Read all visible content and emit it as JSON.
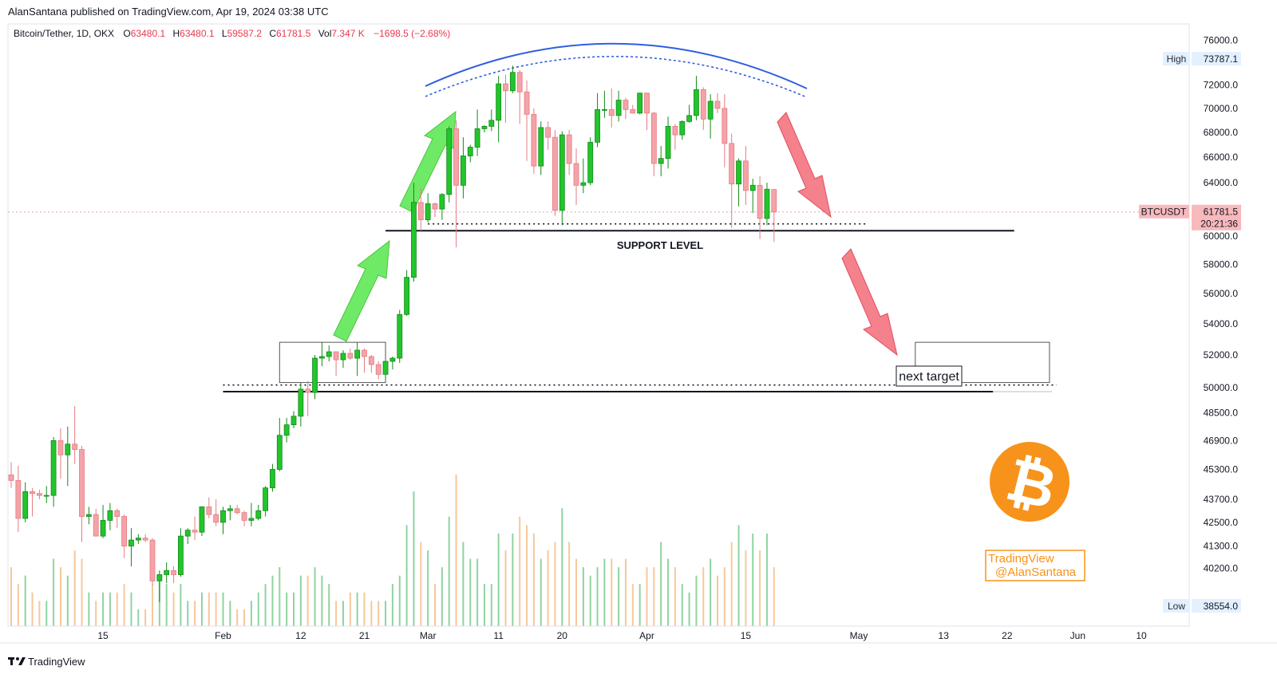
{
  "header": {
    "published": "AlanSantana published on TradingView.com, Apr 19, 2024 03:38 UTC",
    "symbol": "Bitcoin/Tether, 1D, OKX",
    "o_label": "O",
    "o_value": "63480.1",
    "h_label": "H",
    "h_value": "63480.1",
    "l_label": "L",
    "l_value": "59587.2",
    "c_label": "C",
    "c_value": "61781.5",
    "vol_label": "Vol",
    "vol_value": "7.347 K",
    "change": "−1698.5 (−2.68%)"
  },
  "footer": {
    "logo_text": "TradingView"
  },
  "badges": {
    "high_label": "High",
    "high_value": "73787.1",
    "low_label": "Low",
    "low_value": "38554.0",
    "symbol_label": "BTCUSDT",
    "last_price": "61781.5",
    "countdown": "20:21:36"
  },
  "annotations": {
    "support_label": "SUPPORT LEVEL",
    "target_label": "next target",
    "watermark_line1": "TradingView",
    "watermark_line2": "@AlanSantana"
  },
  "colors": {
    "up": "#22c52b",
    "down": "#f4a3a8",
    "vol_up": "#8fd3a0",
    "vol_down": "#f7c79a",
    "arc": "#2f5fe0",
    "arrow_green": "#5fe855",
    "arrow_red": "#f26b78",
    "btc": "#f7931a",
    "price_line": "#f6a0a0"
  },
  "chart_data": {
    "type": "candlestick",
    "y_scale": "log",
    "ylim": [
      37500,
      77500
    ],
    "y_ticks": [
      76000,
      72000,
      70000,
      68000,
      66000,
      64000,
      60000,
      58000,
      56000,
      54000,
      52000,
      50000,
      48500,
      46900,
      45300,
      43700,
      42500,
      41300,
      40200
    ],
    "x_range": [
      "2024-01-02",
      "2024-06-15"
    ],
    "x_ticks": [
      {
        "date": "2024-01-15",
        "label": "15"
      },
      {
        "date": "2024-02-01",
        "label": "Feb"
      },
      {
        "date": "2024-02-12",
        "label": "12"
      },
      {
        "date": "2024-02-21",
        "label": "21"
      },
      {
        "date": "2024-03-01",
        "label": "Mar"
      },
      {
        "date": "2024-03-11",
        "label": "11"
      },
      {
        "date": "2024-03-20",
        "label": "20"
      },
      {
        "date": "2024-04-01",
        "label": "Apr"
      },
      {
        "date": "2024-04-15",
        "label": "15"
      },
      {
        "date": "2024-05-01",
        "label": "May"
      },
      {
        "date": "2024-05-13",
        "label": "13"
      },
      {
        "date": "2024-05-22",
        "label": "22"
      },
      {
        "date": "2024-06-01",
        "label": "Jun"
      },
      {
        "date": "2024-06-10",
        "label": "10"
      }
    ],
    "support_lines": [
      {
        "price": 60400,
        "from": "2024-02-24",
        "to": "2024-05-23",
        "style": "solid"
      },
      {
        "price": 60900,
        "from": "2024-02-30",
        "to": "2024-05-02",
        "style": "dotted"
      },
      {
        "price": 49750,
        "from": "2024-02-01",
        "to": "2024-05-20",
        "style": "solid"
      },
      {
        "price": 50150,
        "from": "2024-02-01",
        "to": "2024-05-29",
        "style": "dotted"
      }
    ],
    "consolidation_box": {
      "from": "2024-02-09",
      "to": "2024-02-24",
      "high": 52800,
      "low": 50300
    },
    "target_box": {
      "from": "2024-05-09",
      "to": "2024-05-28",
      "high": 52800,
      "low": 50300
    },
    "candles": [
      {
        "date": "2024-01-02",
        "o": 45000,
        "h": 45700,
        "l": 44300,
        "c": 44700
      },
      {
        "date": "2024-01-03",
        "o": 44700,
        "h": 45500,
        "l": 42000,
        "c": 42700
      },
      {
        "date": "2024-01-04",
        "o": 42700,
        "h": 44600,
        "l": 42500,
        "c": 44100
      },
      {
        "date": "2024-01-05",
        "o": 44100,
        "h": 44300,
        "l": 42800,
        "c": 44000
      },
      {
        "date": "2024-01-06",
        "o": 44000,
        "h": 44200,
        "l": 43700,
        "c": 43900
      },
      {
        "date": "2024-01-07",
        "o": 43900,
        "h": 44400,
        "l": 43500,
        "c": 43900
      },
      {
        "date": "2024-01-08",
        "o": 43900,
        "h": 47100,
        "l": 43300,
        "c": 46900
      },
      {
        "date": "2024-01-09",
        "o": 46900,
        "h": 47600,
        "l": 44800,
        "c": 46100
      },
      {
        "date": "2024-01-10",
        "o": 46100,
        "h": 47700,
        "l": 44400,
        "c": 46700
      },
      {
        "date": "2024-01-11",
        "o": 46700,
        "h": 48900,
        "l": 45600,
        "c": 46400
      },
      {
        "date": "2024-01-12",
        "o": 46400,
        "h": 46600,
        "l": 41500,
        "c": 42800
      },
      {
        "date": "2024-01-13",
        "o": 42800,
        "h": 43300,
        "l": 42400,
        "c": 42900
      },
      {
        "date": "2024-01-14",
        "o": 42900,
        "h": 43200,
        "l": 41800,
        "c": 41800
      },
      {
        "date": "2024-01-15",
        "o": 41800,
        "h": 43400,
        "l": 41700,
        "c": 42600
      },
      {
        "date": "2024-01-16",
        "o": 42600,
        "h": 43500,
        "l": 42100,
        "c": 43100
      },
      {
        "date": "2024-01-17",
        "o": 43100,
        "h": 43200,
        "l": 42200,
        "c": 42800
      },
      {
        "date": "2024-01-18",
        "o": 42800,
        "h": 42900,
        "l": 40700,
        "c": 41300
      },
      {
        "date": "2024-01-19",
        "o": 41300,
        "h": 42200,
        "l": 40300,
        "c": 41600
      },
      {
        "date": "2024-01-20",
        "o": 41600,
        "h": 41900,
        "l": 41400,
        "c": 41700
      },
      {
        "date": "2024-01-21",
        "o": 41700,
        "h": 41900,
        "l": 41500,
        "c": 41600
      },
      {
        "date": "2024-01-22",
        "o": 41600,
        "h": 41700,
        "l": 39400,
        "c": 39600
      },
      {
        "date": "2024-01-23",
        "o": 39600,
        "h": 40100,
        "l": 38600,
        "c": 39900
      },
      {
        "date": "2024-01-24",
        "o": 39900,
        "h": 40500,
        "l": 39500,
        "c": 40100
      },
      {
        "date": "2024-01-25",
        "o": 40100,
        "h": 40300,
        "l": 39500,
        "c": 39900
      },
      {
        "date": "2024-01-26",
        "o": 39900,
        "h": 42200,
        "l": 39800,
        "c": 41800
      },
      {
        "date": "2024-01-27",
        "o": 41800,
        "h": 42200,
        "l": 41400,
        "c": 42100
      },
      {
        "date": "2024-01-28",
        "o": 42100,
        "h": 42800,
        "l": 41600,
        "c": 42000
      },
      {
        "date": "2024-01-29",
        "o": 42000,
        "h": 43300,
        "l": 41800,
        "c": 43300
      },
      {
        "date": "2024-01-30",
        "o": 43300,
        "h": 43800,
        "l": 42700,
        "c": 42900
      },
      {
        "date": "2024-01-31",
        "o": 42900,
        "h": 43700,
        "l": 42300,
        "c": 42500
      },
      {
        "date": "2024-02-01",
        "o": 42500,
        "h": 43300,
        "l": 41900,
        "c": 43100
      },
      {
        "date": "2024-02-02",
        "o": 43100,
        "h": 43400,
        "l": 42600,
        "c": 43200
      },
      {
        "date": "2024-02-03",
        "o": 43200,
        "h": 43400,
        "l": 42900,
        "c": 43000
      },
      {
        "date": "2024-02-04",
        "o": 43000,
        "h": 43100,
        "l": 42300,
        "c": 42600
      },
      {
        "date": "2024-02-05",
        "o": 42600,
        "h": 43500,
        "l": 42300,
        "c": 42700
      },
      {
        "date": "2024-02-06",
        "o": 42700,
        "h": 43400,
        "l": 42600,
        "c": 43100
      },
      {
        "date": "2024-02-07",
        "o": 43100,
        "h": 44400,
        "l": 42800,
        "c": 44300
      },
      {
        "date": "2024-02-08",
        "o": 44300,
        "h": 45600,
        "l": 44100,
        "c": 45300
      },
      {
        "date": "2024-02-09",
        "o": 45300,
        "h": 48200,
        "l": 45200,
        "c": 47200
      },
      {
        "date": "2024-02-10",
        "o": 47200,
        "h": 48200,
        "l": 46800,
        "c": 47800
      },
      {
        "date": "2024-02-11",
        "o": 47800,
        "h": 48600,
        "l": 47600,
        "c": 48300
      },
      {
        "date": "2024-02-12",
        "o": 48300,
        "h": 50300,
        "l": 47700,
        "c": 49900
      },
      {
        "date": "2024-02-13",
        "o": 49900,
        "h": 50400,
        "l": 48300,
        "c": 49700
      },
      {
        "date": "2024-02-14",
        "o": 49700,
        "h": 52000,
        "l": 49300,
        "c": 51800
      },
      {
        "date": "2024-02-15",
        "o": 51800,
        "h": 52800,
        "l": 51300,
        "c": 51900
      },
      {
        "date": "2024-02-16",
        "o": 51900,
        "h": 52600,
        "l": 51600,
        "c": 52200
      },
      {
        "date": "2024-02-17",
        "o": 52200,
        "h": 52200,
        "l": 50700,
        "c": 51700
      },
      {
        "date": "2024-02-18",
        "o": 51700,
        "h": 52300,
        "l": 51200,
        "c": 52100
      },
      {
        "date": "2024-02-19",
        "o": 52100,
        "h": 52400,
        "l": 51700,
        "c": 51800
      },
      {
        "date": "2024-02-20",
        "o": 51800,
        "h": 52800,
        "l": 50700,
        "c": 52300
      },
      {
        "date": "2024-02-21",
        "o": 52300,
        "h": 52400,
        "l": 50900,
        "c": 51900
      },
      {
        "date": "2024-02-22",
        "o": 51900,
        "h": 52000,
        "l": 50900,
        "c": 51400
      },
      {
        "date": "2024-02-23",
        "o": 51400,
        "h": 51600,
        "l": 50500,
        "c": 50800
      },
      {
        "date": "2024-02-24",
        "o": 50800,
        "h": 51600,
        "l": 50600,
        "c": 51600
      },
      {
        "date": "2024-02-25",
        "o": 51600,
        "h": 51900,
        "l": 51100,
        "c": 51800
      },
      {
        "date": "2024-02-26",
        "o": 51800,
        "h": 54900,
        "l": 51500,
        "c": 54600
      },
      {
        "date": "2024-02-27",
        "o": 54600,
        "h": 57600,
        "l": 54500,
        "c": 57100
      },
      {
        "date": "2024-02-28",
        "o": 57100,
        "h": 64000,
        "l": 56800,
        "c": 62500
      },
      {
        "date": "2024-02-29",
        "o": 62500,
        "h": 63600,
        "l": 60400,
        "c": 61200
      },
      {
        "date": "2024-03-01",
        "o": 61200,
        "h": 63200,
        "l": 61000,
        "c": 62400
      },
      {
        "date": "2024-03-02",
        "o": 62400,
        "h": 62500,
        "l": 61400,
        "c": 62000
      },
      {
        "date": "2024-03-03",
        "o": 62000,
        "h": 63200,
        "l": 61200,
        "c": 63100
      },
      {
        "date": "2024-03-04",
        "o": 63100,
        "h": 68500,
        "l": 62500,
        "c": 68300
      },
      {
        "date": "2024-03-05",
        "o": 68300,
        "h": 69000,
        "l": 59200,
        "c": 63800
      },
      {
        "date": "2024-03-06",
        "o": 63800,
        "h": 67600,
        "l": 62800,
        "c": 66100
      },
      {
        "date": "2024-03-07",
        "o": 66100,
        "h": 67000,
        "l": 65600,
        "c": 66800
      },
      {
        "date": "2024-03-08",
        "o": 66800,
        "h": 69900,
        "l": 66100,
        "c": 68300
      },
      {
        "date": "2024-03-09",
        "o": 68300,
        "h": 68600,
        "l": 68000,
        "c": 68500
      },
      {
        "date": "2024-03-10",
        "o": 68500,
        "h": 69900,
        "l": 68100,
        "c": 69000
      },
      {
        "date": "2024-03-11",
        "o": 69000,
        "h": 72800,
        "l": 67200,
        "c": 72100
      },
      {
        "date": "2024-03-12",
        "o": 72100,
        "h": 72900,
        "l": 68800,
        "c": 71500
      },
      {
        "date": "2024-03-13",
        "o": 71500,
        "h": 73700,
        "l": 71300,
        "c": 73100
      },
      {
        "date": "2024-03-14",
        "o": 73100,
        "h": 73300,
        "l": 68700,
        "c": 71400
      },
      {
        "date": "2024-03-15",
        "o": 71400,
        "h": 72400,
        "l": 65700,
        "c": 69500
      },
      {
        "date": "2024-03-16",
        "o": 69500,
        "h": 70000,
        "l": 64700,
        "c": 65300
      },
      {
        "date": "2024-03-17",
        "o": 65300,
        "h": 68900,
        "l": 64600,
        "c": 68400
      },
      {
        "date": "2024-03-18",
        "o": 68400,
        "h": 68900,
        "l": 66600,
        "c": 67600
      },
      {
        "date": "2024-03-19",
        "o": 67600,
        "h": 68200,
        "l": 61500,
        "c": 61900
      },
      {
        "date": "2024-03-20",
        "o": 61900,
        "h": 68100,
        "l": 60800,
        "c": 67800
      },
      {
        "date": "2024-03-21",
        "o": 67800,
        "h": 68200,
        "l": 64600,
        "c": 65500
      },
      {
        "date": "2024-03-22",
        "o": 65500,
        "h": 66700,
        "l": 62300,
        "c": 63800
      },
      {
        "date": "2024-03-23",
        "o": 63800,
        "h": 65900,
        "l": 63200,
        "c": 64000
      },
      {
        "date": "2024-03-24",
        "o": 64000,
        "h": 67600,
        "l": 63800,
        "c": 67200
      },
      {
        "date": "2024-03-25",
        "o": 67200,
        "h": 71300,
        "l": 66800,
        "c": 69900
      },
      {
        "date": "2024-03-26",
        "o": 69900,
        "h": 71500,
        "l": 69200,
        "c": 69900
      },
      {
        "date": "2024-03-27",
        "o": 69900,
        "h": 71700,
        "l": 68400,
        "c": 69400
      },
      {
        "date": "2024-03-28",
        "o": 69400,
        "h": 71500,
        "l": 68900,
        "c": 70700
      },
      {
        "date": "2024-03-29",
        "o": 70700,
        "h": 70900,
        "l": 69100,
        "c": 69900
      },
      {
        "date": "2024-03-30",
        "o": 69900,
        "h": 70300,
        "l": 69600,
        "c": 69600
      },
      {
        "date": "2024-03-31",
        "o": 69600,
        "h": 71300,
        "l": 69500,
        "c": 71300
      },
      {
        "date": "2024-04-01",
        "o": 71300,
        "h": 71300,
        "l": 68200,
        "c": 69600
      },
      {
        "date": "2024-04-02",
        "o": 69600,
        "h": 69700,
        "l": 64500,
        "c": 65500
      },
      {
        "date": "2024-04-03",
        "o": 65500,
        "h": 66900,
        "l": 64500,
        "c": 65900
      },
      {
        "date": "2024-04-04",
        "o": 65900,
        "h": 69300,
        "l": 65100,
        "c": 68500
      },
      {
        "date": "2024-04-05",
        "o": 68500,
        "h": 68700,
        "l": 66600,
        "c": 67800
      },
      {
        "date": "2024-04-06",
        "o": 67800,
        "h": 69000,
        "l": 67400,
        "c": 68900
      },
      {
        "date": "2024-04-07",
        "o": 68900,
        "h": 70300,
        "l": 68800,
        "c": 69400
      },
      {
        "date": "2024-04-08",
        "o": 69400,
        "h": 72800,
        "l": 69000,
        "c": 71600
      },
      {
        "date": "2024-04-09",
        "o": 71600,
        "h": 71800,
        "l": 68200,
        "c": 69100
      },
      {
        "date": "2024-04-10",
        "o": 69100,
        "h": 71200,
        "l": 67500,
        "c": 70600
      },
      {
        "date": "2024-04-11",
        "o": 70600,
        "h": 71300,
        "l": 69600,
        "c": 70000
      },
      {
        "date": "2024-04-12",
        "o": 70000,
        "h": 71200,
        "l": 65200,
        "c": 67100
      },
      {
        "date": "2024-04-13",
        "o": 67100,
        "h": 67900,
        "l": 60600,
        "c": 63900
      },
      {
        "date": "2024-04-14",
        "o": 63900,
        "h": 65900,
        "l": 62200,
        "c": 65700
      },
      {
        "date": "2024-04-15",
        "o": 65700,
        "h": 66900,
        "l": 62300,
        "c": 63400
      },
      {
        "date": "2024-04-16",
        "o": 63400,
        "h": 64300,
        "l": 61700,
        "c": 63800
      },
      {
        "date": "2024-04-17",
        "o": 63800,
        "h": 64500,
        "l": 59800,
        "c": 61300
      },
      {
        "date": "2024-04-18",
        "o": 61300,
        "h": 64000,
        "l": 60800,
        "c": 63500
      },
      {
        "date": "2024-04-19",
        "o": 63480.1,
        "h": 63480.1,
        "l": 59587.2,
        "c": 61781.5
      }
    ],
    "volume": [
      7,
      5,
      6,
      4,
      3,
      3,
      8,
      7,
      6,
      9,
      8,
      4,
      3,
      4,
      4,
      4,
      5,
      4,
      2,
      2,
      5,
      6,
      5,
      4,
      5,
      3,
      3,
      4,
      4,
      4,
      4,
      3,
      2,
      2,
      3,
      4,
      5,
      6,
      7,
      4,
      4,
      6,
      6,
      7,
      6,
      5,
      3,
      3,
      4,
      4,
      4,
      3,
      3,
      3,
      5,
      6,
      12,
      16,
      10,
      9,
      5,
      7,
      13,
      18,
      10,
      8,
      8,
      5,
      5,
      11,
      9,
      11,
      13,
      12,
      11,
      8,
      9,
      10,
      14,
      10,
      8,
      7,
      6,
      7,
      8,
      8,
      7,
      8,
      5,
      5,
      7,
      7,
      10,
      8,
      7,
      5,
      4,
      6,
      7,
      8,
      6,
      7,
      10,
      12,
      9,
      11,
      9,
      11,
      7
    ]
  }
}
